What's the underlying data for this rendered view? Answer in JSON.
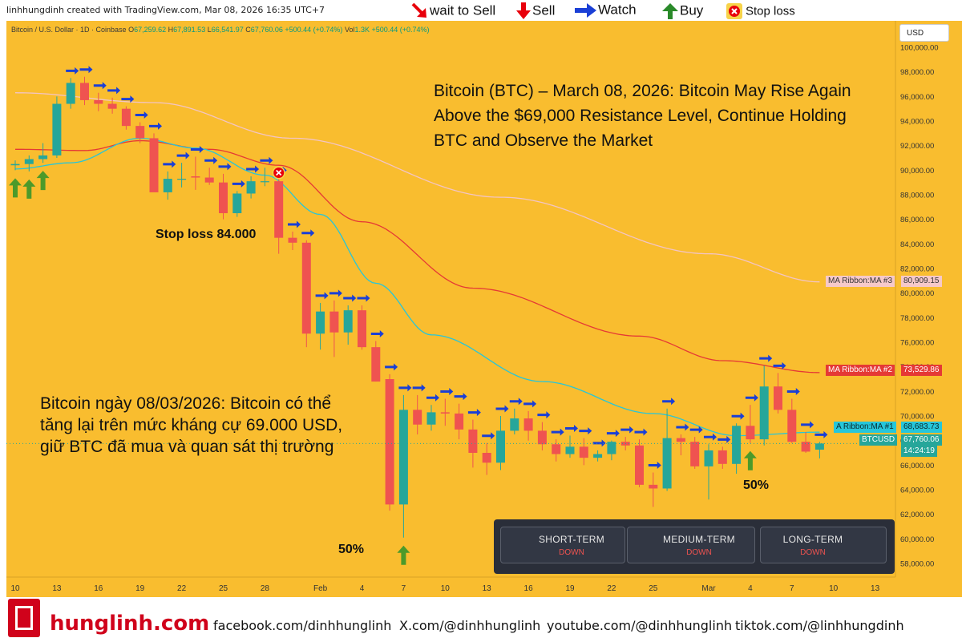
{
  "header": {
    "credit": "linhhungdinh created with TradingView.com, Mar 08, 2026 16:35 UTC+7",
    "legend": [
      {
        "label": "wait to Sell",
        "icon": "red-diagonal-down-arrow-icon",
        "color": "#e8000b"
      },
      {
        "label": "Sell",
        "icon": "red-down-arrow-icon",
        "color": "#e8000b"
      },
      {
        "label": "Watch",
        "icon": "blue-right-arrow-icon",
        "color": "#1a3fd6"
      },
      {
        "label": "Buy",
        "icon": "green-up-arrow-icon",
        "color": "#2a8a2a"
      },
      {
        "label": "Stop loss",
        "icon": "stop-loss-icon",
        "color": "#e8000b"
      }
    ]
  },
  "symbol_line": {
    "name": "Bitcoin / U.S. Dollar · 1D · Coinbase",
    "o_label": "O",
    "o": "67,259.62",
    "h_label": "H",
    "h": "67,891.53",
    "l_label": "L",
    "l": "66,541.97",
    "c_label": "C",
    "c": "67,760.06",
    "change": "+500.44 (+0.74%)",
    "vol_label": "Vol",
    "vol": "1.3K",
    "vol_change": "+500.44 (+0.74%)"
  },
  "currency_button": "USD",
  "annotations": {
    "title": "Bitcoin (BTC) – March 08, 2026: Bitcoin May Rise Again Above the $69,000 Resistance Level, Continue Holding BTC and Observe the Market",
    "vietnamese": "Bitcoin ngày 08/03/2026: Bitcoin có thể tăng lại trên mức kháng cự 69.000 USD, giữ BTC đã mua và quan sát thị trường",
    "stop_loss": "Stop loss 84.000",
    "pct_a": "50%",
    "pct_b": "50%"
  },
  "price_tags": {
    "ma3_label": "MA Ribbon:MA #3",
    "ma3_value": "80,909.15",
    "ma3_color": "#f6c9c9",
    "ma2_label": "MA Ribbon:MA #2",
    "ma2_value": "73,529.86",
    "ma2_color": "#e53935",
    "ma1_label": "A Ribbon:MA #1",
    "ma1_value": "68,683.73",
    "ma1_color": "#26c6da",
    "sym_label": "BTCUSD",
    "sym_value": "67,760.06",
    "sym_countdown": "14:24:19",
    "sym_color": "#26a69a"
  },
  "widget": {
    "cells": [
      {
        "label": "SHORT-TERM",
        "sub": "DOWN"
      },
      {
        "label": "MEDIUM-TERM",
        "sub": "DOWN"
      },
      {
        "label": "LONG-TERM",
        "sub": "DOWN"
      }
    ]
  },
  "footer": {
    "brand": "hunglinh.com",
    "links": [
      "facebook.com/dinhhunglinh",
      "X.com/@dinhhunglinh",
      "youtube.com/@dinhhunglinh",
      "tiktok.com/@linhhungdinh"
    ]
  },
  "chart_data": {
    "type": "candlestick",
    "background": "#f9bd2f",
    "up_color": "#26a69a",
    "down_color": "#ef5350",
    "ylim": [
      56500,
      101500
    ],
    "y_ticks": [
      "58,000.00",
      "60,000.00",
      "62,000.00",
      "64,000.00",
      "66,000.00",
      "68,000.00",
      "70,000.00",
      "72,000.00",
      "74,000.00",
      "76,000.00",
      "78,000.00",
      "80,000.00",
      "82,000.00",
      "84,000.00",
      "86,000.00",
      "88,000.00",
      "90,000.00",
      "92,000.00",
      "94,000.00",
      "96,000.00",
      "98,000.00",
      "100,000.00"
    ],
    "x_ticks": [
      {
        "label": "10",
        "i": 0
      },
      {
        "label": "13",
        "i": 3
      },
      {
        "label": "16",
        "i": 6
      },
      {
        "label": "19",
        "i": 9
      },
      {
        "label": "22",
        "i": 12
      },
      {
        "label": "25",
        "i": 15
      },
      {
        "label": "28",
        "i": 18
      },
      {
        "label": "Feb",
        "i": 22
      },
      {
        "label": "4",
        "i": 25
      },
      {
        "label": "7",
        "i": 28
      },
      {
        "label": "10",
        "i": 31
      },
      {
        "label": "13",
        "i": 34
      },
      {
        "label": "16",
        "i": 37
      },
      {
        "label": "19",
        "i": 40
      },
      {
        "label": "22",
        "i": 43
      },
      {
        "label": "25",
        "i": 46
      },
      {
        "label": "Mar",
        "i": 50
      },
      {
        "label": "4",
        "i": 53
      },
      {
        "label": "7",
        "i": 56
      },
      {
        "label": "10",
        "i": 59
      },
      {
        "label": "13",
        "i": 62
      }
    ],
    "candles": [
      {
        "o": 90400,
        "h": 90800,
        "l": 90000,
        "c": 90500
      },
      {
        "o": 90500,
        "h": 91200,
        "l": 89900,
        "c": 90900
      },
      {
        "o": 90900,
        "h": 92200,
        "l": 90600,
        "c": 91200
      },
      {
        "o": 91200,
        "h": 96000,
        "l": 91000,
        "c": 95400
      },
      {
        "o": 95400,
        "h": 97500,
        "l": 95000,
        "c": 97100
      },
      {
        "o": 97100,
        "h": 97600,
        "l": 95300,
        "c": 95700
      },
      {
        "o": 95700,
        "h": 96300,
        "l": 94800,
        "c": 95400
      },
      {
        "o": 95400,
        "h": 95900,
        "l": 94600,
        "c": 95000
      },
      {
        "o": 95000,
        "h": 95200,
        "l": 93300,
        "c": 93600
      },
      {
        "o": 93600,
        "h": 93900,
        "l": 92200,
        "c": 92600
      },
      {
        "o": 92600,
        "h": 93000,
        "l": 88600,
        "c": 88200
      },
      {
        "o": 88200,
        "h": 89900,
        "l": 87600,
        "c": 89300
      },
      {
        "o": 89300,
        "h": 90600,
        "l": 88600,
        "c": 89300
      },
      {
        "o": 89500,
        "h": 91100,
        "l": 88400,
        "c": 89400
      },
      {
        "o": 89400,
        "h": 90200,
        "l": 88800,
        "c": 89000
      },
      {
        "o": 89000,
        "h": 89700,
        "l": 86000,
        "c": 86500
      },
      {
        "o": 86500,
        "h": 88300,
        "l": 86200,
        "c": 88100
      },
      {
        "o": 88100,
        "h": 89500,
        "l": 87700,
        "c": 89100
      },
      {
        "o": 89100,
        "h": 90200,
        "l": 88700,
        "c": 89100
      },
      {
        "o": 89100,
        "h": 89400,
        "l": 83200,
        "c": 84500
      },
      {
        "o": 84500,
        "h": 85000,
        "l": 83500,
        "c": 84100
      },
      {
        "o": 84100,
        "h": 84300,
        "l": 75600,
        "c": 76700
      },
      {
        "o": 76700,
        "h": 79200,
        "l": 75400,
        "c": 78500
      },
      {
        "o": 78500,
        "h": 79400,
        "l": 74800,
        "c": 76800
      },
      {
        "o": 76800,
        "h": 79000,
        "l": 75800,
        "c": 78600
      },
      {
        "o": 78600,
        "h": 79000,
        "l": 75400,
        "c": 75600
      },
      {
        "o": 75600,
        "h": 76100,
        "l": 72800,
        "c": 72800
      },
      {
        "o": 73000,
        "h": 73400,
        "l": 62300,
        "c": 62800
      },
      {
        "o": 62800,
        "h": 71700,
        "l": 60100,
        "c": 70500
      },
      {
        "o": 70500,
        "h": 71700,
        "l": 68500,
        "c": 69300
      },
      {
        "o": 69300,
        "h": 70900,
        "l": 68800,
        "c": 70300
      },
      {
        "o": 70300,
        "h": 71400,
        "l": 69200,
        "c": 70200
      },
      {
        "o": 70200,
        "h": 71000,
        "l": 68100,
        "c": 68900
      },
      {
        "o": 68900,
        "h": 69700,
        "l": 65800,
        "c": 67000
      },
      {
        "o": 67000,
        "h": 67800,
        "l": 65200,
        "c": 66200
      },
      {
        "o": 66200,
        "h": 70000,
        "l": 65600,
        "c": 68800
      },
      {
        "o": 68800,
        "h": 70600,
        "l": 68500,
        "c": 69800
      },
      {
        "o": 69800,
        "h": 70400,
        "l": 68000,
        "c": 68800
      },
      {
        "o": 68800,
        "h": 69500,
        "l": 67200,
        "c": 67700
      },
      {
        "o": 67700,
        "h": 68100,
        "l": 66300,
        "c": 66900
      },
      {
        "o": 66900,
        "h": 68400,
        "l": 66600,
        "c": 67500
      },
      {
        "o": 67500,
        "h": 68200,
        "l": 66000,
        "c": 66600
      },
      {
        "o": 66600,
        "h": 67200,
        "l": 66300,
        "c": 66900
      },
      {
        "o": 66900,
        "h": 68000,
        "l": 66400,
        "c": 67900
      },
      {
        "o": 67900,
        "h": 68300,
        "l": 67200,
        "c": 67600
      },
      {
        "o": 67600,
        "h": 68100,
        "l": 64200,
        "c": 64400
      },
      {
        "o": 64400,
        "h": 65400,
        "l": 62600,
        "c": 64100
      },
      {
        "o": 64100,
        "h": 70600,
        "l": 63900,
        "c": 68200
      },
      {
        "o": 68200,
        "h": 68500,
        "l": 66800,
        "c": 67900
      },
      {
        "o": 67900,
        "h": 68300,
        "l": 65700,
        "c": 65900
      },
      {
        "o": 65900,
        "h": 67700,
        "l": 63200,
        "c": 67200
      },
      {
        "o": 67200,
        "h": 67500,
        "l": 65700,
        "c": 66100
      },
      {
        "o": 66100,
        "h": 69400,
        "l": 65300,
        "c": 69200
      },
      {
        "o": 69200,
        "h": 70900,
        "l": 67800,
        "c": 68100
      },
      {
        "o": 68100,
        "h": 74100,
        "l": 67600,
        "c": 72400
      },
      {
        "o": 72400,
        "h": 73500,
        "l": 70200,
        "c": 70500
      },
      {
        "o": 70500,
        "h": 71400,
        "l": 67800,
        "c": 67900
      },
      {
        "o": 67900,
        "h": 68700,
        "l": 67000,
        "c": 67100
      },
      {
        "o": 67259.62,
        "h": 67891.53,
        "l": 66541.97,
        "c": 67760.06
      }
    ],
    "ma_ribbon": [
      {
        "name": "MA #3",
        "color": "#f3c4c4",
        "points": [
          [
            0,
            96300
          ],
          [
            10,
            95500
          ],
          [
            20,
            92600
          ],
          [
            35,
            87800
          ],
          [
            50,
            83200
          ],
          [
            58,
            80909.15
          ]
        ]
      },
      {
        "name": "MA #2",
        "color": "#e53935",
        "points": [
          [
            0,
            91700
          ],
          [
            5,
            91600
          ],
          [
            9,
            92400
          ],
          [
            14,
            91700
          ],
          [
            19,
            90400
          ],
          [
            25,
            85800
          ],
          [
            33,
            80400
          ],
          [
            45,
            76500
          ],
          [
            51,
            74500
          ],
          [
            58,
            73529.86
          ]
        ]
      },
      {
        "name": "MA #1",
        "color": "#26c6da",
        "points": [
          [
            0,
            90100
          ],
          [
            4,
            90600
          ],
          [
            9,
            92600
          ],
          [
            13,
            91800
          ],
          [
            18,
            89600
          ],
          [
            22,
            86400
          ],
          [
            26,
            80800
          ],
          [
            30,
            76600
          ],
          [
            38,
            72800
          ],
          [
            46,
            70200
          ],
          [
            52,
            68400
          ],
          [
            58,
            68683.73
          ]
        ]
      }
    ],
    "markers": {
      "watch_arrows": [
        4,
        5,
        6,
        7,
        8,
        9,
        10,
        11,
        12,
        13,
        14,
        15,
        16,
        17,
        18,
        19,
        20,
        21,
        22,
        23,
        24,
        25,
        26,
        27,
        28,
        29,
        30,
        31,
        32,
        33,
        34,
        35,
        36,
        37,
        38,
        39,
        40,
        41,
        42,
        43,
        44,
        45,
        46,
        47,
        48,
        49,
        50,
        51,
        52,
        53,
        54,
        55,
        56,
        57,
        58
      ],
      "buy_arrows": [
        0,
        1,
        2,
        28,
        53
      ],
      "stop_loss_marker": 19
    }
  }
}
